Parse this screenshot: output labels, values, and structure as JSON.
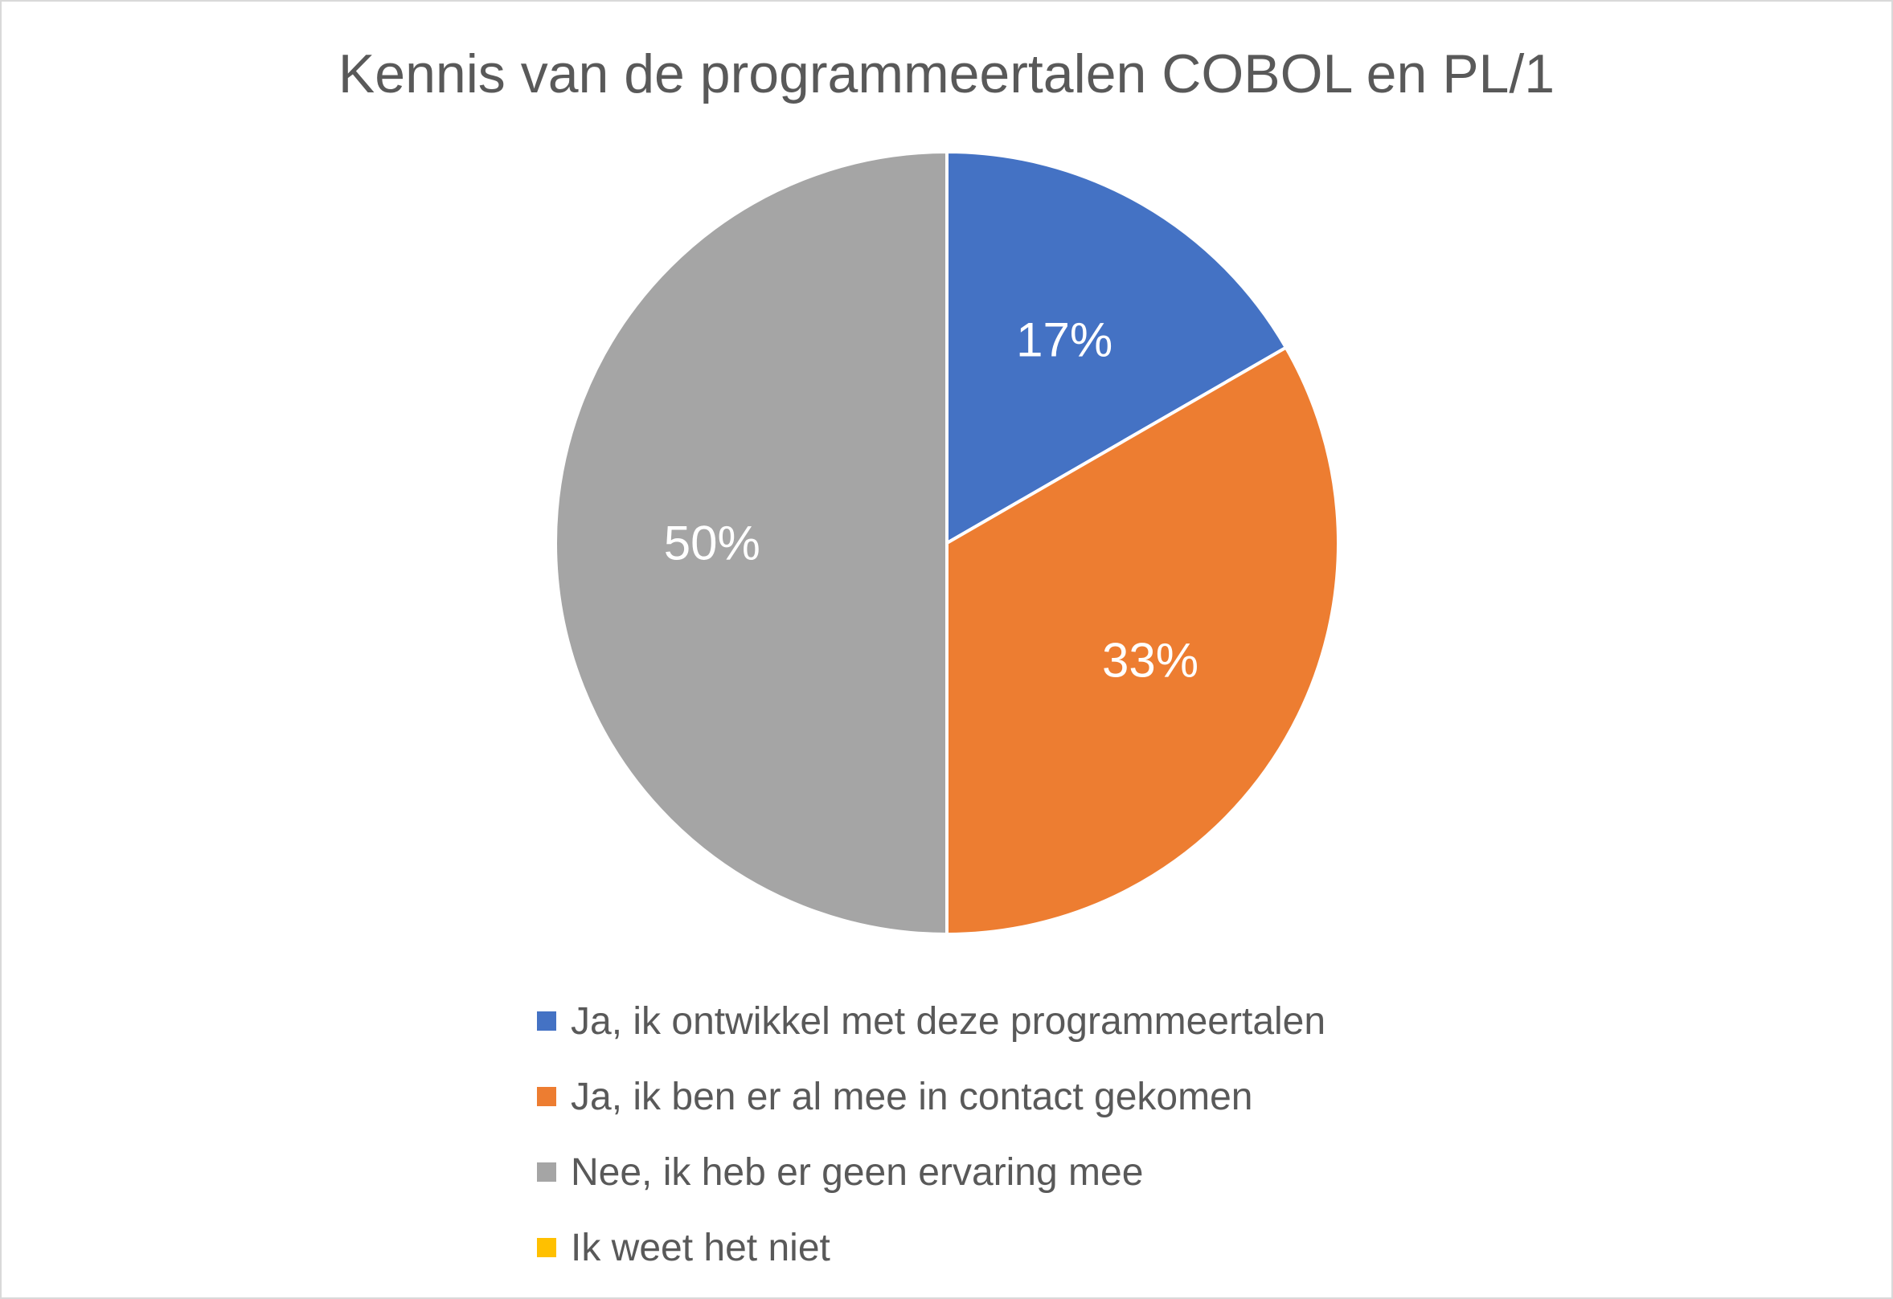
{
  "chart_data": {
    "type": "pie",
    "title": "Kennis van de programmeertalen COBOL en PL/1",
    "categories": [
      "Ja, ik ontwikkel met deze programmeertalen",
      "Ja, ik ben er al mee in contact gekomen",
      "Nee, ik heb er geen ervaring mee",
      "Ik weet het niet"
    ],
    "values": [
      16.67,
      33.33,
      50,
      0
    ],
    "data_labels": [
      "17%",
      "33%",
      "50%",
      ""
    ],
    "colors": [
      "#4472C4",
      "#ED7D31",
      "#A5A5A5",
      "#FFC000"
    ],
    "legend_position": "bottom"
  }
}
